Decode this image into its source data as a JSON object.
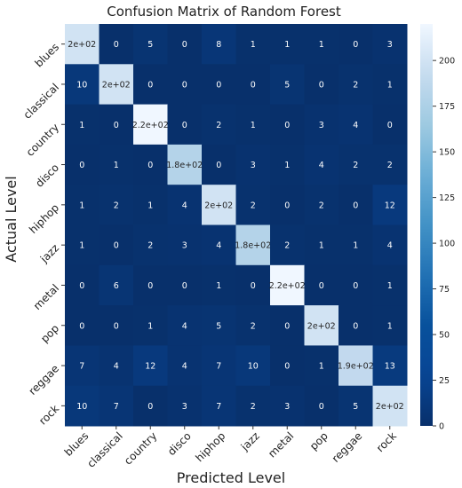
{
  "chart_data": {
    "type": "heatmap",
    "title": "Confusion Matrix of Random Forest",
    "xlabel": "Predicted Level",
    "ylabel": "Actual Level",
    "x_categories": [
      "blues",
      "classical",
      "country",
      "disco",
      "hiphop",
      "jazz",
      "metal",
      "pop",
      "reggae",
      "rock"
    ],
    "y_categories": [
      "blues",
      "classical",
      "country",
      "disco",
      "hiphop",
      "jazz",
      "metal",
      "pop",
      "reggae",
      "rock"
    ],
    "values": [
      [
        200,
        0,
        5,
        0,
        8,
        1,
        1,
        1,
        0,
        3
      ],
      [
        10,
        200,
        0,
        0,
        0,
        0,
        5,
        0,
        2,
        1
      ],
      [
        1,
        0,
        220,
        0,
        2,
        1,
        0,
        3,
        4,
        0
      ],
      [
        0,
        1,
        0,
        180,
        0,
        3,
        1,
        4,
        2,
        2
      ],
      [
        1,
        2,
        1,
        4,
        200,
        2,
        0,
        2,
        0,
        12
      ],
      [
        1,
        0,
        2,
        3,
        4,
        180,
        2,
        1,
        1,
        4
      ],
      [
        0,
        6,
        0,
        0,
        1,
        0,
        220,
        0,
        0,
        1
      ],
      [
        0,
        0,
        1,
        4,
        5,
        2,
        0,
        200,
        0,
        1
      ],
      [
        7,
        4,
        12,
        4,
        7,
        10,
        0,
        1,
        190,
        13
      ],
      [
        10,
        7,
        0,
        3,
        7,
        2,
        3,
        0,
        5,
        200
      ]
    ],
    "cell_labels": [
      [
        "2e+02",
        "0",
        "5",
        "0",
        "8",
        "1",
        "1",
        "1",
        "0",
        "3"
      ],
      [
        "10",
        "2e+02",
        "0",
        "0",
        "0",
        "0",
        "5",
        "0",
        "2",
        "1"
      ],
      [
        "1",
        "0",
        "2.2e+02",
        "0",
        "2",
        "1",
        "0",
        "3",
        "4",
        "0"
      ],
      [
        "0",
        "1",
        "0",
        "1.8e+02",
        "0",
        "3",
        "1",
        "4",
        "2",
        "2"
      ],
      [
        "1",
        "2",
        "1",
        "4",
        "2e+02",
        "2",
        "0",
        "2",
        "0",
        "12"
      ],
      [
        "1",
        "0",
        "2",
        "3",
        "4",
        "1.8e+02",
        "2",
        "1",
        "1",
        "4"
      ],
      [
        "0",
        "6",
        "0",
        "0",
        "1",
        "0",
        "2.2e+02",
        "0",
        "0",
        "1"
      ],
      [
        "0",
        "0",
        "1",
        "4",
        "5",
        "2",
        "0",
        "2e+02",
        "0",
        "1"
      ],
      [
        "7",
        "4",
        "12",
        "4",
        "7",
        "10",
        "0",
        "1",
        "1.9e+02",
        "13"
      ],
      [
        "10",
        "7",
        "0",
        "3",
        "7",
        "2",
        "3",
        "0",
        "5",
        "2e+02"
      ]
    ],
    "colorscale": "Blues_r",
    "color_range": [
      0,
      220
    ],
    "colorbar_ticks": [
      0,
      25,
      50,
      75,
      100,
      125,
      150,
      175,
      200
    ]
  }
}
